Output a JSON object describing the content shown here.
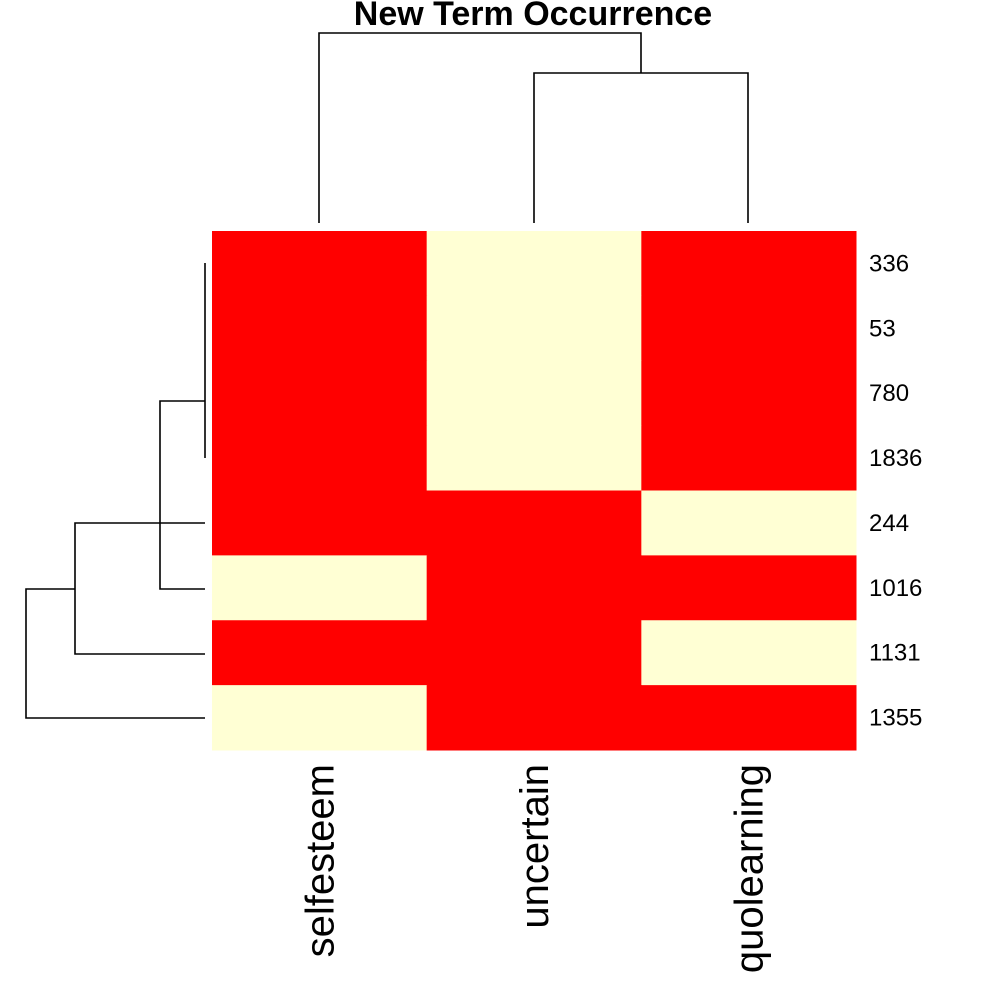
{
  "chart_data": {
    "type": "heatmap",
    "title": "New Term Occurrence",
    "columns": [
      "selfesteem",
      "uncertain",
      "quolearning"
    ],
    "rows": [
      "336",
      "53",
      "780",
      "1836",
      "244",
      "1016",
      "1131",
      "1355"
    ],
    "values": [
      [
        1,
        0,
        1
      ],
      [
        1,
        0,
        1
      ],
      [
        1,
        0,
        1
      ],
      [
        1,
        0,
        1
      ],
      [
        1,
        1,
        0
      ],
      [
        0,
        1,
        1
      ],
      [
        1,
        1,
        0
      ],
      [
        0,
        1,
        1
      ]
    ],
    "colors": {
      "1": "#ff0000",
      "0": "#ffffd4"
    },
    "column_dendrogram": true,
    "row_dendrogram": true
  }
}
